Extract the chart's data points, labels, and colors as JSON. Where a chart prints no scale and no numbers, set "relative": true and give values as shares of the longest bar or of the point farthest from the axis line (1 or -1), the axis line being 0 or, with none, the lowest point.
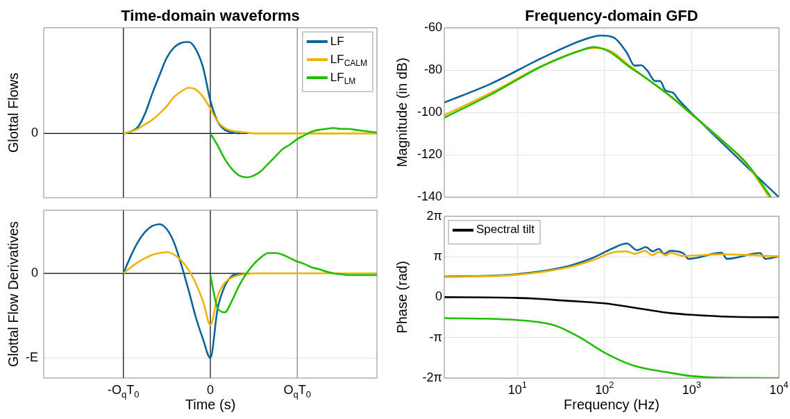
{
  "chart_data": [
    {
      "type": "line",
      "title": "Time-domain waveforms",
      "ylabel": "Glottal Flows",
      "relative": true,
      "categories": [
        null,
        null,
        null,
        null,
        null,
        null,
        null,
        null,
        null,
        null,
        null,
        "-O$_{q}$T$_{0}$",
        null,
        null,
        null,
        null,
        null,
        null,
        null,
        null,
        null,
        null,
        null,
        "0",
        null,
        null,
        null,
        null,
        null,
        null,
        null,
        null,
        null,
        null,
        null,
        "O$_{q}$T$_{0}$",
        null,
        null,
        null,
        null,
        null,
        null,
        null,
        null,
        null,
        null,
        null
      ],
      "tick_labels": "y",
      "legend": "top right",
      "ref_lines": [
        {
          "axis": "y",
          "value": 0,
          "label": "0",
          "color": "#000000"
        },
        {
          "axis": "x",
          "value": "-O$_{q}$T$_{0}$",
          "color": "#000000"
        },
        {
          "axis": "x",
          "value": "0",
          "color": "#000000"
        },
        {
          "axis": "x",
          "value": "O$_{q}$T$_{0}$",
          "color": "#808080"
        }
      ],
      "series": [
        {
          "name": "LF",
          "color": "#0b639b",
          "values": [
            null,
            null,
            null,
            null,
            null,
            null,
            null,
            null,
            null,
            null,
            null,
            0,
            0.02,
            0.07,
            0.22,
            0.44,
            0.64,
            0.83,
            0.94,
            0.99,
            1,
            0.92,
            0.72,
            0.36,
            0.13,
            0.04,
            0.01,
            0,
            null,
            null,
            null,
            null,
            null,
            null,
            null,
            null,
            null,
            null,
            null,
            null,
            null,
            null,
            null,
            null,
            null,
            null,
            null
          ]
        },
        {
          "name": "LF$_{CALM}$",
          "color": "#f0b400",
          "values": [
            null,
            null,
            null,
            null,
            null,
            null,
            null,
            null,
            null,
            null,
            null,
            0,
            0.02,
            0.05,
            0.1,
            0.15,
            0.22,
            0.3,
            0.4,
            0.46,
            0.5,
            0.48,
            0.4,
            0.27,
            0.13,
            0.06,
            0.03,
            0.02,
            0.01,
            0,
            0,
            0,
            0,
            0,
            0,
            0,
            0,
            0,
            0,
            0,
            0,
            0,
            0,
            0,
            0,
            0,
            0
          ]
        },
        {
          "name": "LF$_{LM}$",
          "color": "#1fbe00",
          "values": [
            null,
            null,
            null,
            null,
            null,
            null,
            null,
            null,
            null,
            null,
            null,
            null,
            null,
            null,
            null,
            null,
            null,
            null,
            null,
            null,
            null,
            null,
            null,
            0,
            -0.13,
            -0.28,
            -0.39,
            -0.46,
            -0.48,
            -0.46,
            -0.41,
            -0.33,
            -0.25,
            -0.17,
            -0.12,
            -0.06,
            -0.02,
            0.02,
            0.04,
            0.05,
            0.06,
            0.05,
            0.05,
            0.04,
            0.03,
            0.02,
            0.01
          ]
        }
      ]
    },
    {
      "type": "line",
      "xlabel": "Time (s)",
      "ylabel": "Glottal Flow Derivatives",
      "relative": true,
      "categories": [
        null,
        null,
        null,
        null,
        null,
        null,
        null,
        null,
        null,
        null,
        null,
        "-O$_{q}$T$_{0}$",
        null,
        null,
        null,
        null,
        null,
        null,
        null,
        null,
        null,
        null,
        null,
        "0",
        null,
        null,
        null,
        null,
        null,
        null,
        null,
        null,
        null,
        null,
        null,
        "O$_{q}$T$_{0}$",
        null,
        null,
        null,
        null,
        null,
        null,
        null,
        null,
        null,
        null,
        null
      ],
      "ref_lines": [
        {
          "axis": "y",
          "value": 0,
          "label": "0",
          "color": "#000000"
        },
        {
          "axis": "y",
          "value": -1,
          "label": "-E",
          "color": "#e6e6e6"
        },
        {
          "axis": "x",
          "value": "-O$_{q}$T$_{0}$",
          "color": "#000000"
        },
        {
          "axis": "x",
          "value": "0",
          "color": "#000000"
        },
        {
          "axis": "x",
          "value": "O$_{q}$T$_{0}$",
          "color": "#808080"
        }
      ],
      "series": [
        {
          "color": "#0b639b",
          "values": [
            null,
            null,
            null,
            null,
            null,
            null,
            null,
            null,
            null,
            null,
            null,
            0,
            0.2,
            0.37,
            0.49,
            0.56,
            0.58,
            0.52,
            0.36,
            0.1,
            -0.2,
            -0.52,
            -0.78,
            -1,
            -0.42,
            -0.15,
            -0.03,
            0,
            null,
            null,
            null,
            null,
            null,
            null,
            null,
            null,
            null,
            null,
            null,
            null,
            null,
            null,
            null,
            null,
            null,
            null,
            null
          ]
        },
        {
          "color": "#f0b400",
          "values": [
            null,
            null,
            null,
            null,
            null,
            null,
            null,
            null,
            null,
            null,
            null,
            0,
            0.07,
            0.13,
            0.18,
            0.22,
            0.24,
            0.25,
            0.22,
            0.15,
            0.04,
            -0.12,
            -0.33,
            -0.61,
            -0.27,
            -0.11,
            -0.05,
            -0.02,
            -0.01,
            0,
            0,
            0,
            0,
            0,
            0,
            0,
            0,
            0,
            0,
            0,
            0,
            0,
            0,
            0,
            0,
            0,
            0
          ]
        },
        {
          "color": "#1fbe00",
          "values": [
            null,
            null,
            null,
            null,
            null,
            null,
            null,
            null,
            null,
            null,
            null,
            null,
            null,
            null,
            null,
            null,
            null,
            null,
            null,
            null,
            null,
            null,
            null,
            -0.02,
            -0.41,
            -0.46,
            -0.32,
            -0.14,
            0,
            0.11,
            0.19,
            0.24,
            0.24,
            0.22,
            0.18,
            0.14,
            0.11,
            0.07,
            0.05,
            0.02,
            0,
            -0.01,
            -0.02,
            -0.02,
            -0.02,
            -0.02,
            -0.02
          ]
        }
      ]
    },
    {
      "type": "line",
      "title": "Frequency-domain GFD",
      "ylabel": "Magnitude (in dB)",
      "log": "x",
      "xlim": [
        1.45,
        10000
      ],
      "xticks": [
        {
          "value": 10,
          "label": null
        },
        {
          "value": 100,
          "label": null
        },
        {
          "value": 1000,
          "label": null
        },
        {
          "value": 10000,
          "label": null
        }
      ],
      "ylim": [
        -140,
        -60
      ],
      "yticks": [
        -140,
        -120,
        -100,
        -80,
        -60
      ],
      "tick_labels": "y",
      "grid": true,
      "series": [
        {
          "color": "#0b639b",
          "x": [
            1.45,
            4.98,
            19.3,
            57,
            91.6,
            128.5,
            180,
            221,
            262,
            310,
            380,
            434,
            498,
            610,
            698,
            1000,
            2208,
            4347,
            10000
          ],
          "values": [
            -95.3,
            -86.4,
            -74.2,
            -65.7,
            -63.7,
            -64.7,
            -71.8,
            -77.9,
            -77.7,
            -80.3,
            -85.2,
            -85.2,
            -89.5,
            -90.7,
            -93.7,
            -100.4,
            -114.2,
            -125.9,
            -140
          ]
        },
        {
          "color": "#f0b400",
          "x": [
            1.45,
            4.98,
            19.3,
            57,
            80,
            120,
            193,
            290,
            570,
            1000,
            2208,
            4347,
            7727
          ],
          "values": [
            -101.3,
            -90.7,
            -77.9,
            -70.3,
            -69.6,
            -71.2,
            -77.9,
            -83.4,
            -92.5,
            -101,
            -113.2,
            -124.8,
            -140
          ]
        },
        {
          "color": "#1fbe00",
          "x": [
            1.45,
            4.98,
            19.3,
            57,
            74.8,
            112,
            193,
            290,
            570,
            1000,
            2208,
            4347,
            8110
          ],
          "values": [
            -102.5,
            -91.5,
            -78.1,
            -70.3,
            -69.1,
            -71.2,
            -78.5,
            -83.4,
            -92.3,
            -100.8,
            -113,
            -124.4,
            -140
          ]
        }
      ]
    },
    {
      "type": "line",
      "xlabel": "Frequency (Hz)",
      "ylabel": "Phase (rad)",
      "log": "x",
      "xlim": [
        1.45,
        10000
      ],
      "xticks": [
        {
          "value": 10,
          "label": "10$^{1}$"
        },
        {
          "value": 100,
          "label": "10$^{2}$"
        },
        {
          "value": 1000,
          "label": "10$^{3}$"
        },
        {
          "value": 10000,
          "label": "10$^{4}$"
        }
      ],
      "ylim": [
        -6.2832,
        6.2832
      ],
      "yticks": [
        {
          "value": -6.2832,
          "label": "-2π"
        },
        {
          "value": -3.1416,
          "label": "-π"
        },
        0,
        {
          "value": 3.1416,
          "label": "π"
        },
        {
          "value": 6.2832,
          "label": "2π"
        }
      ],
      "grid": true,
      "legend": "top left",
      "series": [
        {
          "color": "#0b639b",
          "x": [
            1.45,
            9.8,
            37.9,
            74.8,
            120,
            180,
            237,
            299,
            355,
            421,
            481,
            570,
            800,
            916,
            2208,
            2530,
            6095,
            6982,
            10000
          ],
          "values": [
            1.6,
            1.79,
            2.41,
            3.08,
            3.75,
            4.17,
            3.65,
            3.89,
            3.56,
            3.75,
            3.36,
            3.6,
            3.41,
            2.98,
            3.45,
            2.98,
            3.43,
            2.98,
            3.17
          ]
        },
        {
          "color": "#f0b400",
          "x": [
            1.45,
            9.8,
            37.9,
            74.8,
            128.5,
            180,
            221,
            290,
            355,
            421,
            498,
            570,
            800,
            2208,
            10000
          ],
          "values": [
            1.56,
            1.74,
            2.31,
            2.89,
            3.5,
            3.56,
            3.37,
            3.6,
            3.27,
            3.52,
            3.25,
            3.44,
            3.21,
            3.33,
            3.17
          ]
        },
        {
          "name": "Spectral tilt",
          "color": "#000000",
          "x": [
            1.45,
            9.8,
            37.9,
            100,
            193,
            290,
            570,
            1000,
            3097,
            10000
          ],
          "values": [
            0,
            -0.05,
            -0.28,
            -0.48,
            -0.76,
            -0.95,
            -1.24,
            -1.37,
            -1.53,
            -1.56
          ]
        },
        {
          "color": "#1fbe00",
          "x": [
            1.45,
            9.8,
            27,
            53.2,
            100,
            206,
            570,
            1000,
            3097,
            10000
          ],
          "values": [
            -1.62,
            -1.77,
            -2.2,
            -3.16,
            -4.31,
            -5.27,
            -5.88,
            -6.13,
            -6.27,
            -6.28
          ]
        }
      ]
    }
  ]
}
